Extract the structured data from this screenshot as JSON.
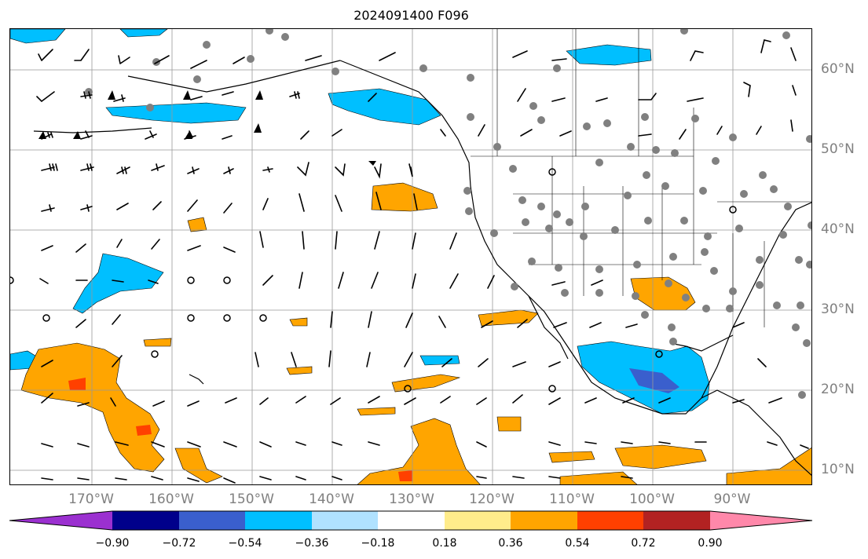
{
  "title": "2024091400 F096",
  "lon_labels": [
    "170°W",
    "160°W",
    "150°W",
    "140°W",
    "130°W",
    "120°W",
    "110°W",
    "100°W",
    "90°W"
  ],
  "lat_labels": [
    "60°N",
    "50°N",
    "40°N",
    "30°N",
    "20°N",
    "10°N"
  ],
  "colorbar": {
    "tick_labels": [
      "−0.90",
      "−0.72",
      "−0.54",
      "−0.36",
      "−0.18",
      "0.18",
      "0.36",
      "0.54",
      "0.72",
      "0.90"
    ],
    "colors": [
      "#9b30d0",
      "#00008b",
      "#3a5fcd",
      "#00bfff",
      "#b0e2ff",
      "#ffffff",
      "#ffec8b",
      "#ffa500",
      "#ff4000",
      "#b22222",
      "#ff88aa"
    ]
  },
  "colors": {
    "negative_fill": "#00bfff",
    "positive_fill": "#ffa500",
    "strong_positive_fill": "#ff4000",
    "strong_negative_fill": "#3a5fcd",
    "station_marker": "#808080",
    "gridline": "#999999"
  }
}
